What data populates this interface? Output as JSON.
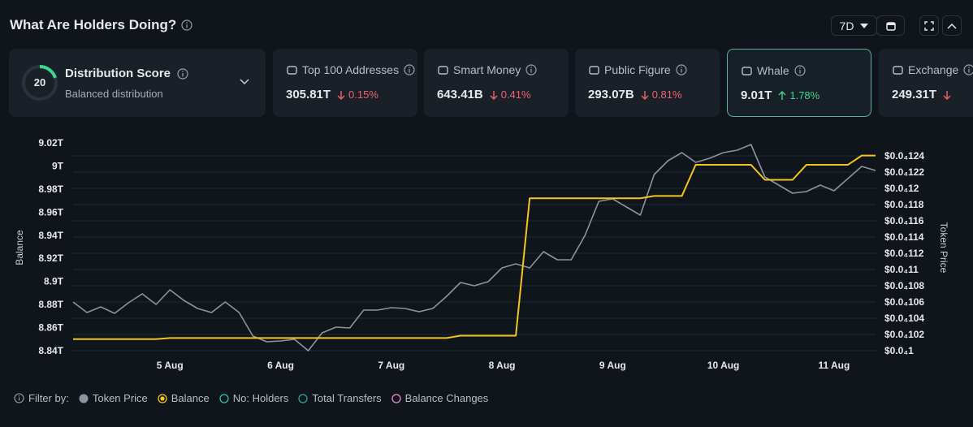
{
  "header": {
    "title": "What Are Holders Doing?",
    "period": "7D"
  },
  "cards": [
    {
      "title": "Distribution Score",
      "subtitle": "Balanced distribution",
      "score": 20
    },
    {
      "title": "Top 100 Addresses",
      "value": "305.81T",
      "change": "0.15%",
      "direction": "down"
    },
    {
      "title": "Smart Money",
      "value": "643.41B",
      "change": "0.41%",
      "direction": "down"
    },
    {
      "title": "Public Figure",
      "value": "293.07B",
      "change": "0.81%",
      "direction": "down"
    },
    {
      "title": "Whale",
      "value": "9.01T",
      "change": "1.78%",
      "direction": "up",
      "selected": true
    },
    {
      "title": "Exchange",
      "value": "249.31T",
      "direction": "down"
    }
  ],
  "chart_data": {
    "type": "line",
    "categories": [
      null,
      null,
      null,
      null,
      null,
      null,
      null,
      "5 Aug",
      null,
      null,
      null,
      null,
      null,
      null,
      null,
      "6 Aug",
      null,
      null,
      null,
      null,
      null,
      null,
      null,
      "7 Aug",
      null,
      null,
      null,
      null,
      null,
      null,
      null,
      "8 Aug",
      null,
      null,
      null,
      null,
      null,
      null,
      null,
      "9 Aug",
      null,
      null,
      null,
      null,
      null,
      null,
      null,
      "10 Aug",
      null,
      null,
      null,
      null,
      null,
      null,
      null,
      "11 Aug",
      null,
      null,
      null
    ],
    "series": [
      {
        "name": "Token Price",
        "color": "#8b949e",
        "axis": "y2",
        "values": [
          1.06e-05,
          1.047e-05,
          1.054e-05,
          1.046e-05,
          1.059e-05,
          1.07e-05,
          1.057e-05,
          1.075e-05,
          1.062e-05,
          1.052e-05,
          1.047e-05,
          1.06e-05,
          1.047e-05,
          1.018e-05,
          1.011e-05,
          1.012e-05,
          1.014e-05,
          1e-05,
          1.022e-05,
          1.029e-05,
          1.028e-05,
          1.05e-05,
          1.05e-05,
          1.053e-05,
          1.052e-05,
          1.048e-05,
          1.052e-05,
          1.067e-05,
          1.084e-05,
          1.08e-05,
          1.085e-05,
          1.102e-05,
          1.107e-05,
          1.102e-05,
          1.122e-05,
          1.112e-05,
          1.112e-05,
          1.142e-05,
          1.184e-05,
          1.187e-05,
          1.177e-05,
          1.167e-05,
          1.217e-05,
          1.234e-05,
          1.244e-05,
          1.232e-05,
          1.237e-05,
          1.244e-05,
          1.247e-05,
          1.254e-05,
          1.214e-05,
          1.204e-05,
          1.194e-05,
          1.196e-05,
          1.204e-05,
          1.197e-05,
          1.212e-05,
          1.227e-05,
          1.222e-05
        ]
      },
      {
        "name": "Balance",
        "color": "#f5c518",
        "values": [
          8.85,
          8.85,
          8.85,
          8.85,
          8.85,
          8.85,
          8.85,
          8.851,
          8.851,
          8.851,
          8.851,
          8.851,
          8.851,
          8.851,
          8.851,
          8.851,
          8.851,
          8.851,
          8.851,
          8.851,
          8.851,
          8.851,
          8.851,
          8.851,
          8.851,
          8.851,
          8.851,
          8.851,
          8.853,
          8.853,
          8.853,
          8.853,
          8.853,
          8.972,
          8.972,
          8.972,
          8.972,
          8.972,
          8.972,
          8.972,
          8.972,
          8.972,
          8.974,
          8.974,
          8.974,
          9.001,
          9.001,
          9.001,
          9.001,
          9.001,
          8.988,
          8.988,
          8.988,
          9.001,
          9.001,
          9.001,
          9.001,
          9.009,
          9.009
        ]
      }
    ],
    "ylabel": "Balance",
    "y2label": "Token Price",
    "ylim": [
      8.84,
      9.02
    ],
    "yticks": [
      {
        "value": 8.84,
        "label": "8.84T"
      },
      {
        "value": 8.86,
        "label": "8.86T"
      },
      {
        "value": 8.88,
        "label": "8.88T"
      },
      {
        "value": 8.9,
        "label": "8.9T"
      },
      {
        "value": 8.92,
        "label": "8.92T"
      },
      {
        "value": 8.94,
        "label": "8.94T"
      },
      {
        "value": 8.96,
        "label": "8.96T"
      },
      {
        "value": 8.98,
        "label": "8.98T"
      },
      {
        "value": 9,
        "label": "9T"
      },
      {
        "value": 9.02,
        "label": "9.02T"
      }
    ],
    "y2lim": [
      1e-05,
      1.256e-05
    ],
    "y2ticks": [
      {
        "value": 1e-05,
        "label": "$0.0₄1"
      },
      {
        "value": 1.02e-05,
        "label": "$0.0₄102"
      },
      {
        "value": 1.04e-05,
        "label": "$0.0₄104"
      },
      {
        "value": 1.06e-05,
        "label": "$0.0₄106"
      },
      {
        "value": 1.08e-05,
        "label": "$0.0₄108"
      },
      {
        "value": 1.1e-05,
        "label": "$0.0₄11"
      },
      {
        "value": 1.12e-05,
        "label": "$0.0₄112"
      },
      {
        "value": 1.14e-05,
        "label": "$0.0₄114"
      },
      {
        "value": 1.16e-05,
        "label": "$0.0₄116"
      },
      {
        "value": 1.18e-05,
        "label": "$0.0₄118"
      },
      {
        "value": 1.2e-05,
        "label": "$0.0₄12"
      },
      {
        "value": 1.22e-05,
        "label": "$0.0₄122"
      },
      {
        "value": 1.24e-05,
        "label": "$0.0₄124"
      }
    ],
    "grid": true
  },
  "filters": {
    "label": "Filter by:",
    "extra": [
      {
        "name": "No: Holders",
        "color": "#2ec4b6"
      },
      {
        "name": "Total Transfers",
        "color": "#26a69a"
      },
      {
        "name": "Balance Changes",
        "color": "#e88bd0"
      }
    ]
  }
}
